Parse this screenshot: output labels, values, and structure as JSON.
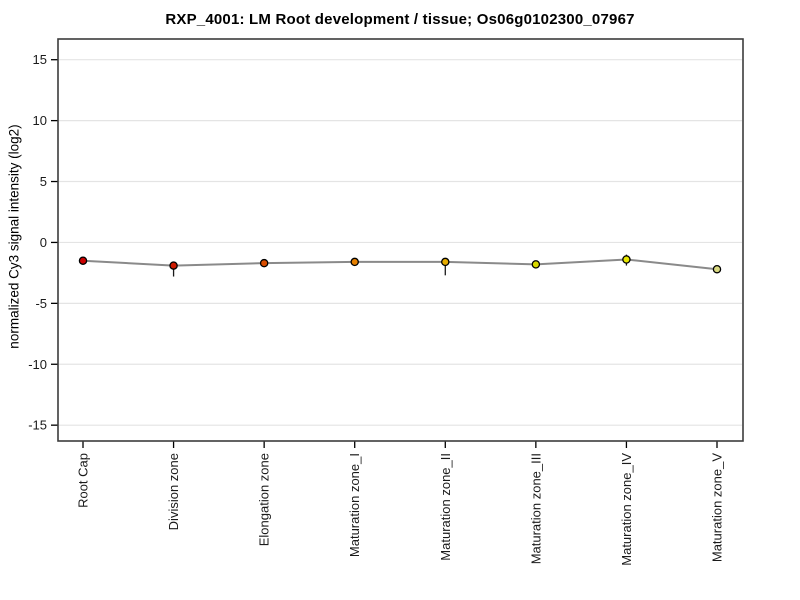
{
  "page": {
    "background": "#ffffff"
  },
  "chart_data": {
    "type": "line",
    "title": "RXP_4001: LM Root development / tissue; Os06g0102300_07967",
    "xlabel": "",
    "ylabel": "normalized Cy3 signal intensity (log2)",
    "categories": [
      "Root Cap",
      "Division zone",
      "Elongation zone",
      "Maturation zone_I",
      "Maturation zone_II",
      "Maturation zone_III",
      "Maturation zone_IV",
      "Maturation zone_V"
    ],
    "series": [
      {
        "name": "normalized Cy3 signal intensity (log2)",
        "values": [
          -1.5,
          -1.9,
          -1.7,
          -1.6,
          -1.6,
          -1.8,
          -1.4,
          -2.2
        ],
        "error_low": [
          -1.5,
          -2.8,
          -1.7,
          -1.6,
          -2.7,
          -1.8,
          -1.9,
          -2.2
        ],
        "error_high": [
          -1.5,
          -1.9,
          -1.7,
          -1.6,
          -1.6,
          -1.8,
          -1.0,
          -2.2
        ],
        "point_colors": [
          "#cc0000",
          "#cc1a00",
          "#d94d00",
          "#e68000",
          "#e6ac00",
          "#d9d900",
          "#e6e600",
          "#d9d980"
        ],
        "line_color": "#8a8a8a",
        "point_outline_color": "#000000",
        "errorbar_color": "#1a1a1a"
      }
    ],
    "yticks": [
      -15,
      -10,
      -5,
      0,
      5,
      10,
      15
    ],
    "ylim": [
      -16.3,
      16.7
    ],
    "grid": "horizontal",
    "gridline_color": "#e4e4e4",
    "axis_color": "#3c3c3c",
    "tick_label_color": "#1a1a1a",
    "legend": "none"
  }
}
